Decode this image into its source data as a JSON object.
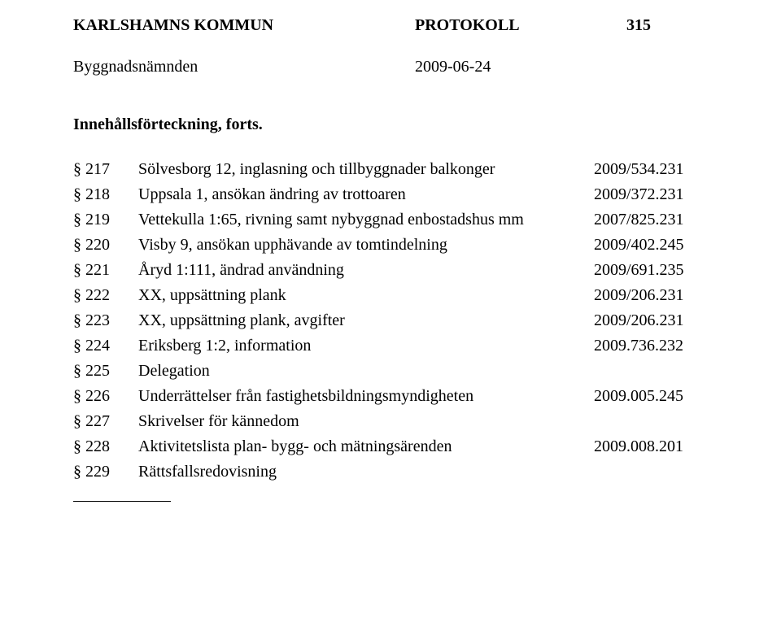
{
  "header": {
    "org": "KARLSHAMNS KOMMUN",
    "doctype": "PROTOKOLL",
    "pageno": "315"
  },
  "subheader": {
    "committee": "Byggnadsnämnden",
    "date": "2009-06-24"
  },
  "toc": {
    "title": "Innehållsförteckning, forts.",
    "rows": [
      {
        "sec": "§ 217",
        "desc": "Sölvesborg 12, inglasning och tillbyggnader balkonger",
        "ref": "2009/534.231"
      },
      {
        "sec": "§ 218",
        "desc": "Uppsala 1, ansökan ändring av trottoaren",
        "ref": "2009/372.231"
      },
      {
        "sec": "§ 219",
        "desc": "Vettekulla 1:65, rivning samt nybyggnad enbostadshus mm",
        "ref": "2007/825.231"
      },
      {
        "sec": "§ 220",
        "desc": "Visby 9, ansökan upphävande av tomtindelning",
        "ref": "2009/402.245"
      },
      {
        "sec": "§ 221",
        "desc": "Åryd 1:111, ändrad användning",
        "ref": "2009/691.235"
      },
      {
        "sec": "§ 222",
        "desc": "XX, uppsättning plank",
        "ref": "2009/206.231"
      },
      {
        "sec": "§ 223",
        "desc": "XX, uppsättning plank, avgifter",
        "ref": "2009/206.231"
      },
      {
        "sec": "§ 224",
        "desc": "Eriksberg 1:2, information",
        "ref": "2009.736.232"
      },
      {
        "sec": "§ 225",
        "desc": "Delegation",
        "ref": ""
      },
      {
        "sec": "§ 226",
        "desc": "Underrättelser från fastighetsbildningsmyndigheten",
        "ref": "2009.005.245"
      },
      {
        "sec": "§ 227",
        "desc": "Skrivelser för kännedom",
        "ref": ""
      },
      {
        "sec": "§ 228",
        "desc": "Aktivitetslista plan- bygg- och mätningsärenden",
        "ref": "2009.008.201"
      },
      {
        "sec": "§ 229",
        "desc": "Rättsfallsredovisning",
        "ref": ""
      }
    ]
  }
}
